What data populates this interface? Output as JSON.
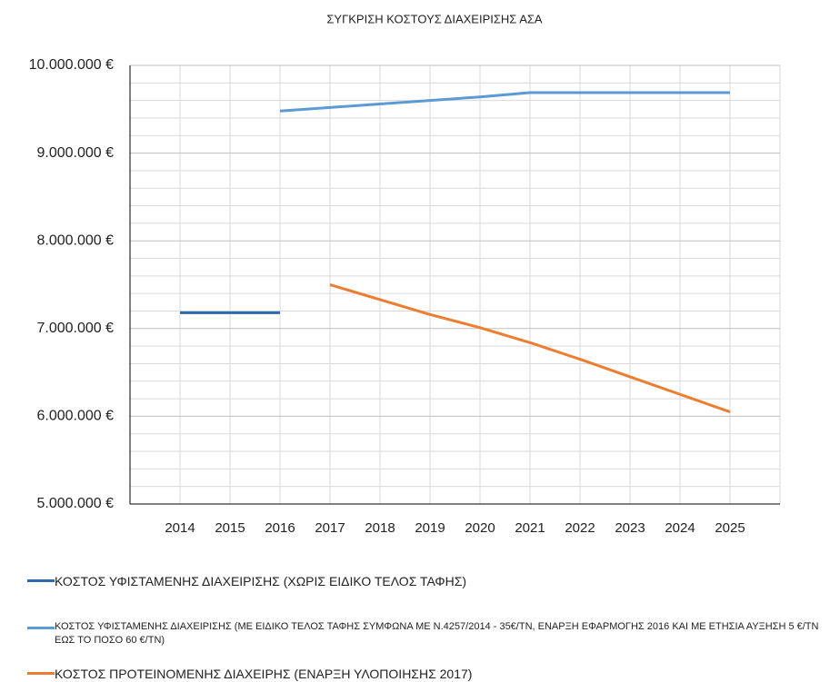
{
  "chart_data": {
    "type": "line",
    "title": "ΣΥΓΚΡΙΣΗ ΚΟΣΤΟΥΣ ΔΙΑΧΕΙΡΙΣΗΣ ΑΣΑ",
    "categories": [
      null,
      "2014",
      "2015",
      "2016",
      "2017",
      "2018",
      "2019",
      "2020",
      "2021",
      "2022",
      "2023",
      "2024",
      "2025",
      null
    ],
    "series": [
      {
        "name": "ΚΟΣΤΟΣ ΥΦΙΣΤΑΜΕΝΗΣ ΔΙΑΧΕΙΡΙΣΗΣ (ΧΩΡΙΣ ΕΙΔΙΚΟ ΤΕΛΟΣ ΤΑΦΗΣ)",
        "color": "#2e6aad",
        "values": [
          null,
          7180000,
          7180000,
          7180000,
          null,
          null,
          null,
          null,
          null,
          null,
          null,
          null,
          null,
          null
        ]
      },
      {
        "name": "ΚΟΣΤΟΣ ΥΦΙΣΤΑΜΕΝΗΣ ΔΙΑΧΕΙΡΙΣΗΣ (ΜΕ ΕΙΔΙΚΟ ΤΕΛΟΣ ΤΑΦΗΣ ΣΥΜΦΩΝΑ ΜΕ Ν.4257/2014 -  35€/ΤΝ, ΕΝΑΡΞΗ ΕΦΑΡΜΟΓΗΣ 2016 ΚΑΙ ΜΕ ΕΤΗΣΙΑ ΑΥΞΗΣΗ 5 €/ΤΝ ΕΩΣ ΤΟ ΠΟΣΟ 60 €/ΤΝ)",
        "color": "#5b9bd5",
        "values": [
          null,
          null,
          null,
          9480000,
          9520000,
          9560000,
          9600000,
          9640000,
          9690000,
          9690000,
          9690000,
          9690000,
          9690000,
          null
        ]
      },
      {
        "name": "ΚΟΣΤΟΣ ΠΡΟΤΕΙΝΟΜΕΝΗΣ ΔΙΑΧΕΙΡΗΣ (ΕΝΑΡΞΗ ΥΛΟΠΟΙΗΣΗΣ 2017)",
        "color": "#ed7d31",
        "values": [
          null,
          null,
          null,
          null,
          7500000,
          7330000,
          7160000,
          7010000,
          6840000,
          6650000,
          6450000,
          6250000,
          6050000,
          null
        ]
      }
    ],
    "ylim": [
      5000000,
      10000000
    ],
    "yticks": [
      {
        "value": 5000000,
        "label": "5.000.000 €"
      },
      {
        "value": 6000000,
        "label": "6.000.000 €"
      },
      {
        "value": 7000000,
        "label": "7.000.000 €"
      },
      {
        "value": 8000000,
        "label": "8.000.000 €"
      },
      {
        "value": 9000000,
        "label": "9.000.000 €"
      },
      {
        "value": 10000000,
        "label": "10.000.000 €"
      }
    ],
    "minor_grid_yticks": [
      5200000,
      5400000,
      5600000,
      5800000,
      6200000,
      6400000,
      6600000,
      6800000,
      7200000,
      7400000,
      7600000,
      7800000,
      8200000,
      8400000,
      8600000,
      8800000,
      9200000,
      9400000,
      9600000,
      9800000
    ],
    "grid": true,
    "legend": "bottom"
  }
}
